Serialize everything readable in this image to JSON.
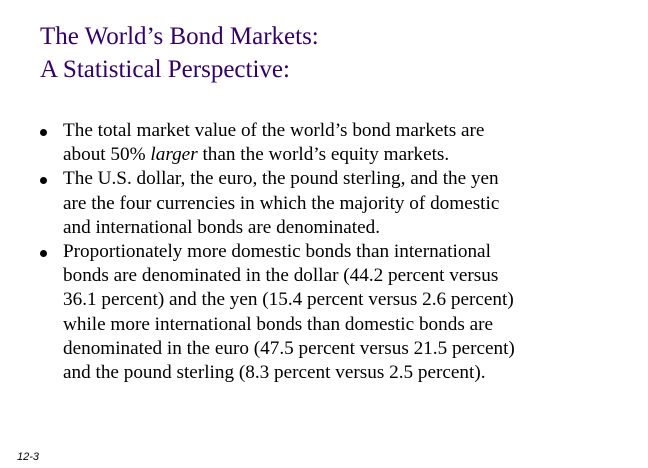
{
  "slide": {
    "title_line1": "The World’s Bond Markets:",
    "title_line2": "A Statistical Perspective:",
    "slide_number": "12-3",
    "title_color": "#330066",
    "text_color": "#000000"
  },
  "bullets": [
    {
      "lines": [
        {
          "text": "The total market value of the world’s bond markets are"
        },
        {
          "before": "about 50% ",
          "emph": "larger",
          "after": " than the world’s equity markets."
        }
      ]
    },
    {
      "lines": [
        {
          "text": "The U.S. dollar, the euro, the pound sterling, and the yen"
        },
        {
          "text": "are the four currencies in which the majority of domestic"
        },
        {
          "text": "and international bonds are denominated."
        }
      ]
    },
    {
      "lines": [
        {
          "text": "Proportionately more domestic bonds than international"
        },
        {
          "text": "bonds are denominated in the dollar (44.2 percent versus"
        },
        {
          "text": "36.1 percent) and the yen (15.4 percent versus 2.6 percent)"
        },
        {
          "text": "while more international bonds than domestic bonds are"
        },
        {
          "text": "denominated in the euro (47.5 percent versus 21.5 percent)"
        },
        {
          "text": "and the pound sterling (8.3 percent versus 2.5 percent)."
        }
      ]
    }
  ]
}
